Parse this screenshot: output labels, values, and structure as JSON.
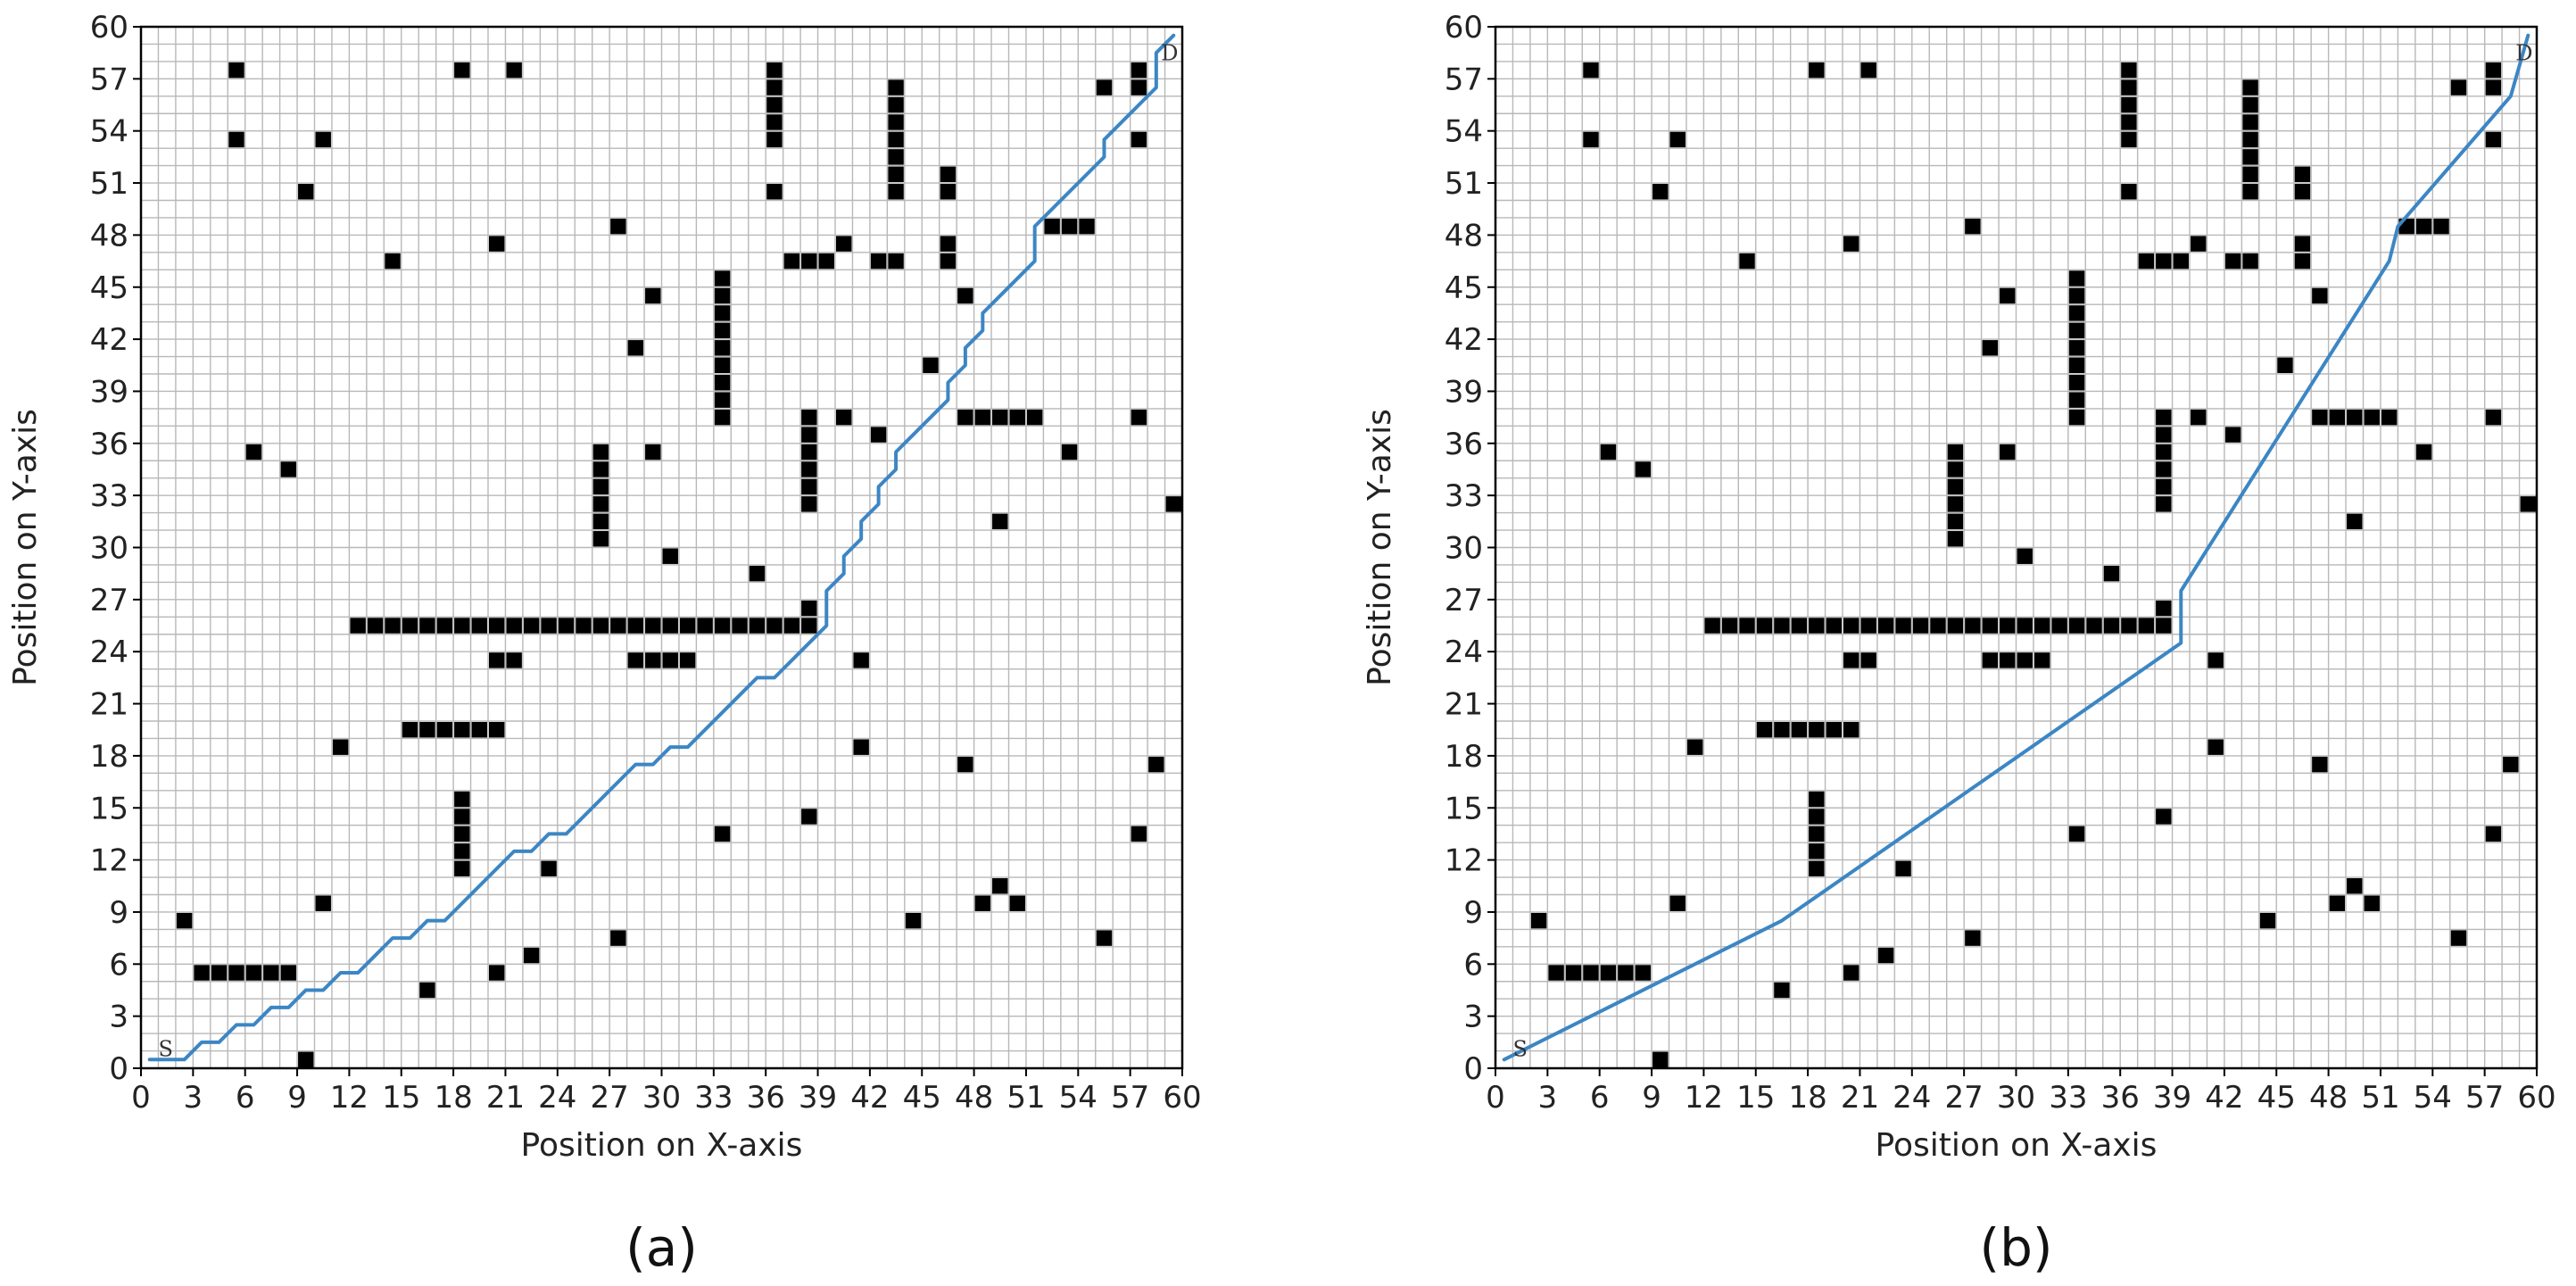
{
  "chart_data": [
    {
      "type": "scatter",
      "panel_label": "(a)",
      "xlabel": "Position on X-axis",
      "ylabel": "Position on Y-axis",
      "xlim": [
        0,
        60
      ],
      "ylim": [
        0,
        60
      ],
      "ticks": [
        0,
        3,
        6,
        9,
        12,
        15,
        18,
        21,
        24,
        27,
        30,
        33,
        36,
        39,
        42,
        45,
        48,
        51,
        54,
        57,
        60
      ],
      "grid": true,
      "grid_step": 1,
      "obstacle_color": "#000000",
      "path_color": "#3c86c4",
      "start_label": "S",
      "goal_label": "D",
      "start": [
        1,
        0.5
      ],
      "goal": [
        59.5,
        59.5
      ],
      "obstacles": [
        [
          5,
          57
        ],
        [
          5,
          53
        ],
        [
          18,
          57
        ],
        [
          21,
          57
        ],
        [
          36,
          57
        ],
        [
          36,
          56
        ],
        [
          36,
          55
        ],
        [
          36,
          54
        ],
        [
          36,
          53
        ],
        [
          36,
          50
        ],
        [
          43,
          56
        ],
        [
          43,
          55
        ],
        [
          43,
          54
        ],
        [
          43,
          53
        ],
        [
          43,
          52
        ],
        [
          43,
          51
        ],
        [
          43,
          50
        ],
        [
          57,
          57
        ],
        [
          57,
          56
        ],
        [
          57,
          53
        ],
        [
          55,
          56
        ],
        [
          10,
          53
        ],
        [
          9,
          50
        ],
        [
          27,
          48
        ],
        [
          20,
          47
        ],
        [
          14,
          46
        ],
        [
          37,
          46
        ],
        [
          38,
          46
        ],
        [
          39,
          46
        ],
        [
          40,
          47
        ],
        [
          42,
          46
        ],
        [
          43,
          46
        ],
        [
          46,
          51
        ],
        [
          46,
          50
        ],
        [
          46,
          47
        ],
        [
          46,
          46
        ],
        [
          47,
          44
        ],
        [
          52,
          48
        ],
        [
          53,
          48
        ],
        [
          54,
          48
        ],
        [
          29,
          44
        ],
        [
          33,
          45
        ],
        [
          33,
          44
        ],
        [
          33,
          43
        ],
        [
          33,
          42
        ],
        [
          33,
          41
        ],
        [
          33,
          40
        ],
        [
          33,
          39
        ],
        [
          33,
          38
        ],
        [
          33,
          37
        ],
        [
          28,
          41
        ],
        [
          45,
          40
        ],
        [
          38,
          37
        ],
        [
          38,
          36
        ],
        [
          38,
          35
        ],
        [
          38,
          34
        ],
        [
          38,
          33
        ],
        [
          38,
          32
        ],
        [
          40,
          37
        ],
        [
          42,
          36
        ],
        [
          47,
          37
        ],
        [
          48,
          37
        ],
        [
          49,
          37
        ],
        [
          50,
          37
        ],
        [
          51,
          37
        ],
        [
          57,
          37
        ],
        [
          53,
          35
        ],
        [
          59,
          32
        ],
        [
          6,
          35
        ],
        [
          8,
          34
        ],
        [
          26,
          35
        ],
        [
          26,
          34
        ],
        [
          26,
          33
        ],
        [
          26,
          32
        ],
        [
          26,
          31
        ],
        [
          26,
          30
        ],
        [
          29,
          35
        ],
        [
          30,
          29
        ],
        [
          49,
          31
        ],
        [
          35,
          28
        ],
        [
          38,
          26
        ],
        [
          12,
          25
        ],
        [
          13,
          25
        ],
        [
          14,
          25
        ],
        [
          15,
          25
        ],
        [
          16,
          25
        ],
        [
          17,
          25
        ],
        [
          18,
          25
        ],
        [
          19,
          25
        ],
        [
          20,
          25
        ],
        [
          21,
          25
        ],
        [
          22,
          25
        ],
        [
          23,
          25
        ],
        [
          24,
          25
        ],
        [
          25,
          25
        ],
        [
          26,
          25
        ],
        [
          27,
          25
        ],
        [
          28,
          25
        ],
        [
          29,
          25
        ],
        [
          30,
          25
        ],
        [
          31,
          25
        ],
        [
          32,
          25
        ],
        [
          33,
          25
        ],
        [
          34,
          25
        ],
        [
          35,
          25
        ],
        [
          36,
          25
        ],
        [
          37,
          25
        ],
        [
          38,
          25
        ],
        [
          20,
          23
        ],
        [
          21,
          23
        ],
        [
          28,
          23
        ],
        [
          29,
          23
        ],
        [
          30,
          23
        ],
        [
          31,
          23
        ],
        [
          41,
          23
        ],
        [
          15,
          19
        ],
        [
          16,
          19
        ],
        [
          17,
          19
        ],
        [
          18,
          19
        ],
        [
          19,
          19
        ],
        [
          20,
          19
        ],
        [
          11,
          18
        ],
        [
          41,
          18
        ],
        [
          47,
          17
        ],
        [
          58,
          17
        ],
        [
          18,
          15
        ],
        [
          18,
          14
        ],
        [
          18,
          13
        ],
        [
          18,
          12
        ],
        [
          18,
          11
        ],
        [
          38,
          14
        ],
        [
          33,
          13
        ],
        [
          57,
          13
        ],
        [
          23,
          11
        ],
        [
          49,
          10
        ],
        [
          10,
          9
        ],
        [
          48,
          9
        ],
        [
          50,
          9
        ],
        [
          2,
          8
        ],
        [
          44,
          8
        ],
        [
          27,
          7
        ],
        [
          55,
          7
        ],
        [
          22,
          6
        ],
        [
          3,
          5
        ],
        [
          4,
          5
        ],
        [
          5,
          5
        ],
        [
          6,
          5
        ],
        [
          7,
          5
        ],
        [
          8,
          5
        ],
        [
          20,
          5
        ],
        [
          16,
          4
        ],
        [
          9,
          0
        ]
      ],
      "path": [
        [
          0.5,
          0.5
        ],
        [
          2.5,
          0.5
        ],
        [
          3.5,
          1.5
        ],
        [
          4.5,
          1.5
        ],
        [
          5.5,
          2.5
        ],
        [
          6.5,
          2.5
        ],
        [
          7.5,
          3.5
        ],
        [
          8.5,
          3.5
        ],
        [
          9.5,
          4.5
        ],
        [
          10.5,
          4.5
        ],
        [
          11.5,
          5.5
        ],
        [
          12.5,
          5.5
        ],
        [
          13.5,
          6.5
        ],
        [
          14.5,
          7.5
        ],
        [
          15.5,
          7.5
        ],
        [
          16.5,
          8.5
        ],
        [
          17.5,
          8.5
        ],
        [
          21.5,
          12.5
        ],
        [
          22.5,
          12.5
        ],
        [
          23.5,
          13.5
        ],
        [
          24.5,
          13.5
        ],
        [
          28.5,
          17.5
        ],
        [
          29.5,
          17.5
        ],
        [
          30.5,
          18.5
        ],
        [
          31.5,
          18.5
        ],
        [
          35.5,
          22.5
        ],
        [
          36.5,
          22.5
        ],
        [
          39.5,
          25.5
        ],
        [
          39.5,
          26.5
        ],
        [
          39.5,
          27.5
        ],
        [
          40.5,
          28.5
        ],
        [
          40.5,
          29.5
        ],
        [
          41.5,
          30.5
        ],
        [
          41.5,
          31.5
        ],
        [
          42.5,
          32.5
        ],
        [
          42.5,
          33.5
        ],
        [
          43.5,
          34.5
        ],
        [
          43.5,
          35.5
        ],
        [
          46.5,
          38.5
        ],
        [
          46.5,
          39.5
        ],
        [
          47.5,
          40.5
        ],
        [
          47.5,
          41.5
        ],
        [
          48.5,
          42.5
        ],
        [
          48.5,
          43.5
        ],
        [
          51.5,
          46.5
        ],
        [
          51.5,
          48.5
        ],
        [
          55.5,
          52.5
        ],
        [
          55.5,
          53.5
        ],
        [
          57.5,
          55.5
        ],
        [
          58.5,
          56.5
        ],
        [
          58.5,
          58.5
        ],
        [
          59.5,
          59.5
        ]
      ]
    },
    {
      "type": "scatter",
      "panel_label": "(b)",
      "xlabel": "Position on X-axis",
      "ylabel": "Position on Y-axis",
      "xlim": [
        0,
        60
      ],
      "ylim": [
        0,
        60
      ],
      "ticks": [
        0,
        3,
        6,
        9,
        12,
        15,
        18,
        21,
        24,
        27,
        30,
        33,
        36,
        39,
        42,
        45,
        48,
        51,
        54,
        57,
        60
      ],
      "grid": true,
      "grid_step": 1,
      "obstacle_color": "#000000",
      "path_color": "#3c86c4",
      "start_label": "S",
      "goal_label": "D",
      "start": [
        1,
        0.5
      ],
      "goal": [
        59.5,
        59.5
      ],
      "obstacles": [
        [
          5,
          57
        ],
        [
          5,
          53
        ],
        [
          18,
          57
        ],
        [
          21,
          57
        ],
        [
          36,
          57
        ],
        [
          36,
          56
        ],
        [
          36,
          55
        ],
        [
          36,
          54
        ],
        [
          36,
          53
        ],
        [
          36,
          50
        ],
        [
          43,
          56
        ],
        [
          43,
          55
        ],
        [
          43,
          54
        ],
        [
          43,
          53
        ],
        [
          43,
          52
        ],
        [
          43,
          51
        ],
        [
          43,
          50
        ],
        [
          57,
          57
        ],
        [
          57,
          56
        ],
        [
          57,
          53
        ],
        [
          55,
          56
        ],
        [
          10,
          53
        ],
        [
          9,
          50
        ],
        [
          27,
          48
        ],
        [
          20,
          47
        ],
        [
          14,
          46
        ],
        [
          37,
          46
        ],
        [
          38,
          46
        ],
        [
          39,
          46
        ],
        [
          40,
          47
        ],
        [
          42,
          46
        ],
        [
          43,
          46
        ],
        [
          46,
          51
        ],
        [
          46,
          50
        ],
        [
          46,
          47
        ],
        [
          46,
          46
        ],
        [
          47,
          44
        ],
        [
          52,
          48
        ],
        [
          53,
          48
        ],
        [
          54,
          48
        ],
        [
          29,
          44
        ],
        [
          33,
          45
        ],
        [
          33,
          44
        ],
        [
          33,
          43
        ],
        [
          33,
          42
        ],
        [
          33,
          41
        ],
        [
          33,
          40
        ],
        [
          33,
          39
        ],
        [
          33,
          38
        ],
        [
          33,
          37
        ],
        [
          28,
          41
        ],
        [
          45,
          40
        ],
        [
          38,
          37
        ],
        [
          38,
          36
        ],
        [
          38,
          35
        ],
        [
          38,
          34
        ],
        [
          38,
          33
        ],
        [
          38,
          32
        ],
        [
          40,
          37
        ],
        [
          42,
          36
        ],
        [
          47,
          37
        ],
        [
          48,
          37
        ],
        [
          49,
          37
        ],
        [
          50,
          37
        ],
        [
          51,
          37
        ],
        [
          57,
          37
        ],
        [
          53,
          35
        ],
        [
          59,
          32
        ],
        [
          6,
          35
        ],
        [
          8,
          34
        ],
        [
          26,
          35
        ],
        [
          26,
          34
        ],
        [
          26,
          33
        ],
        [
          26,
          32
        ],
        [
          26,
          31
        ],
        [
          26,
          30
        ],
        [
          29,
          35
        ],
        [
          30,
          29
        ],
        [
          49,
          31
        ],
        [
          35,
          28
        ],
        [
          38,
          26
        ],
        [
          12,
          25
        ],
        [
          13,
          25
        ],
        [
          14,
          25
        ],
        [
          15,
          25
        ],
        [
          16,
          25
        ],
        [
          17,
          25
        ],
        [
          18,
          25
        ],
        [
          19,
          25
        ],
        [
          20,
          25
        ],
        [
          21,
          25
        ],
        [
          22,
          25
        ],
        [
          23,
          25
        ],
        [
          24,
          25
        ],
        [
          25,
          25
        ],
        [
          26,
          25
        ],
        [
          27,
          25
        ],
        [
          28,
          25
        ],
        [
          29,
          25
        ],
        [
          30,
          25
        ],
        [
          31,
          25
        ],
        [
          32,
          25
        ],
        [
          33,
          25
        ],
        [
          34,
          25
        ],
        [
          35,
          25
        ],
        [
          36,
          25
        ],
        [
          37,
          25
        ],
        [
          38,
          25
        ],
        [
          20,
          23
        ],
        [
          21,
          23
        ],
        [
          28,
          23
        ],
        [
          29,
          23
        ],
        [
          30,
          23
        ],
        [
          31,
          23
        ],
        [
          41,
          23
        ],
        [
          15,
          19
        ],
        [
          16,
          19
        ],
        [
          17,
          19
        ],
        [
          18,
          19
        ],
        [
          19,
          19
        ],
        [
          20,
          19
        ],
        [
          11,
          18
        ],
        [
          41,
          18
        ],
        [
          47,
          17
        ],
        [
          58,
          17
        ],
        [
          18,
          15
        ],
        [
          18,
          14
        ],
        [
          18,
          13
        ],
        [
          18,
          12
        ],
        [
          18,
          11
        ],
        [
          38,
          14
        ],
        [
          33,
          13
        ],
        [
          57,
          13
        ],
        [
          23,
          11
        ],
        [
          49,
          10
        ],
        [
          10,
          9
        ],
        [
          48,
          9
        ],
        [
          50,
          9
        ],
        [
          2,
          8
        ],
        [
          44,
          8
        ],
        [
          27,
          7
        ],
        [
          55,
          7
        ],
        [
          22,
          6
        ],
        [
          3,
          5
        ],
        [
          4,
          5
        ],
        [
          5,
          5
        ],
        [
          6,
          5
        ],
        [
          7,
          5
        ],
        [
          8,
          5
        ],
        [
          20,
          5
        ],
        [
          16,
          4
        ],
        [
          9,
          0
        ]
      ],
      "path": [
        [
          0.5,
          0.5
        ],
        [
          16.5,
          8.5
        ],
        [
          39.5,
          24.5
        ],
        [
          39.5,
          27.5
        ],
        [
          51.5,
          46.5
        ],
        [
          52,
          48.5
        ],
        [
          58.5,
          56
        ],
        [
          59.5,
          59.5
        ]
      ]
    }
  ]
}
